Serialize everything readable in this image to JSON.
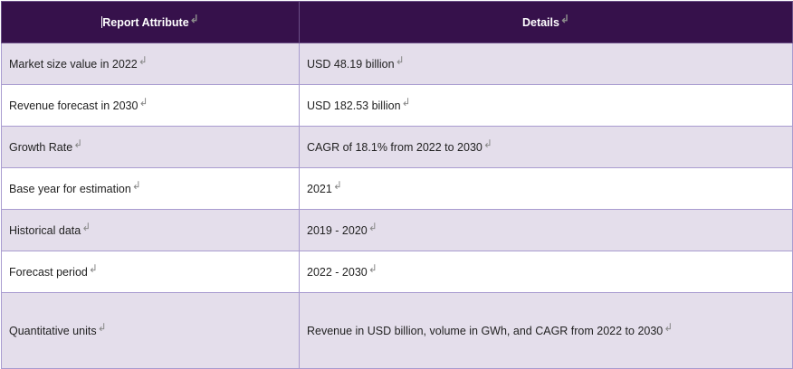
{
  "header": {
    "col1": "Report Attribute",
    "col2": "Details"
  },
  "para_mark": "↲",
  "rows": [
    {
      "attribute": "Market size value in 2022",
      "detail": "USD 48.19 billion"
    },
    {
      "attribute": "Revenue forecast in 2030",
      "detail": "USD 182.53 billion"
    },
    {
      "attribute": "Growth Rate",
      "detail": "CAGR of 18.1% from 2022 to 2030"
    },
    {
      "attribute": "Base year for estimation",
      "detail": "2021"
    },
    {
      "attribute": "Historical data",
      "detail": "2019 - 2020"
    },
    {
      "attribute": "Forecast period",
      "detail": "2022 - 2030"
    },
    {
      "attribute": "Quantitative units",
      "detail": "Revenue in USD billion, volume in GWh, and CAGR from 2022 to 2030"
    }
  ],
  "colors": {
    "header_bg": "#36114b",
    "odd_row_bg": "#e4deeb",
    "even_row_bg": "#ffffff",
    "border": "#a99cd0"
  }
}
